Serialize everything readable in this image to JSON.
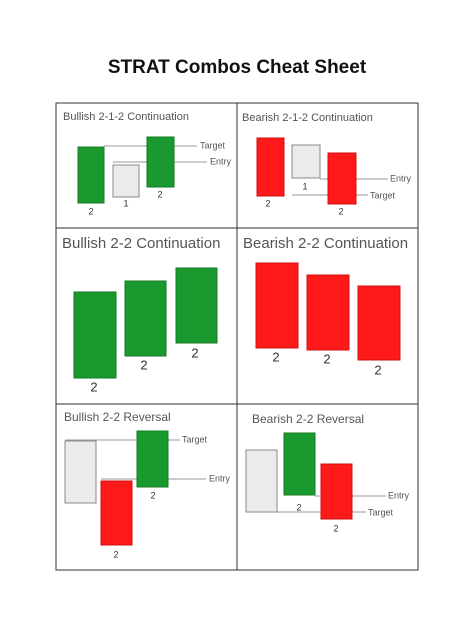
{
  "header": {
    "title": "STRAT Combos Cheat Sheet"
  },
  "panels": [
    {
      "title": "Bullish 2-1-2 Continuation",
      "labels": [
        "Target",
        "Entry",
        "2",
        "1",
        "2"
      ]
    },
    {
      "title": "Bearish 2-1-2 Continuation",
      "labels": [
        "Entry",
        "Target",
        "2",
        "1",
        "2"
      ]
    },
    {
      "title": "Bullish 2-2 Continuation",
      "labels": [
        "2",
        "2",
        "2"
      ]
    },
    {
      "title": "Bearish 2-2 Continuation",
      "labels": [
        "2",
        "2",
        "2"
      ]
    },
    {
      "title": "Bullish 2-2 Reversal",
      "labels": [
        "Target",
        "Entry",
        "2",
        "2"
      ]
    },
    {
      "title": "Bearish 2-2 Reversal",
      "labels": [
        "Entry",
        "Target",
        "2",
        "2"
      ]
    }
  ]
}
